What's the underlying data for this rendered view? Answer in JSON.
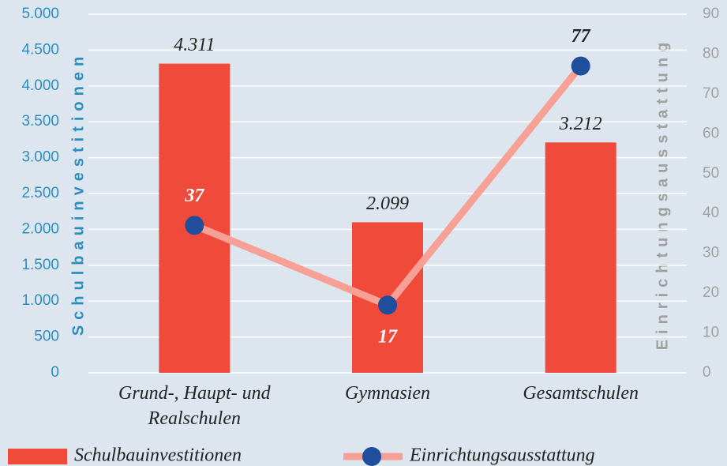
{
  "chart_data": {
    "type": "bar-line",
    "categories": [
      "Grund-, Haupt- und Realschulen",
      "Gymnasien",
      "Gesamtschulen"
    ],
    "series": [
      {
        "name": "Schulbauinvestitionen",
        "type": "bar",
        "color": "#f04a3a",
        "values": [
          4311,
          2099,
          3212
        ],
        "value_labels": [
          "4.311",
          "2.099",
          "3.212"
        ]
      },
      {
        "name": "Einrichtungsausstattung",
        "type": "line",
        "axis": "y2",
        "color": "#f7a096",
        "marker_color": "#1f4e9c",
        "values": [
          37,
          17,
          77
        ]
      }
    ],
    "ylabel": "Schulbauinvestitionen",
    "y2label": "Einrichtungsausstattung",
    "ylim": [
      0,
      5000
    ],
    "yticks": [
      0,
      500,
      {
        "value": 1000,
        "label": "1.000"
      },
      {
        "value": 1500,
        "label": "1.500"
      },
      {
        "value": 2000,
        "label": "2.000"
      },
      {
        "value": 2500,
        "label": "2.500"
      },
      {
        "value": 3000,
        "label": "3.000"
      },
      {
        "value": 3500,
        "label": "3.500"
      },
      {
        "value": 4000,
        "label": "4.000"
      },
      {
        "value": 4500,
        "label": "4.500"
      },
      {
        "value": 5000,
        "label": "5.000"
      }
    ],
    "y2lim": [
      0,
      90
    ],
    "y2ticks": [
      0,
      10,
      20,
      30,
      40,
      50,
      60,
      70,
      80,
      90
    ],
    "grid": true,
    "legend": "bottom"
  }
}
